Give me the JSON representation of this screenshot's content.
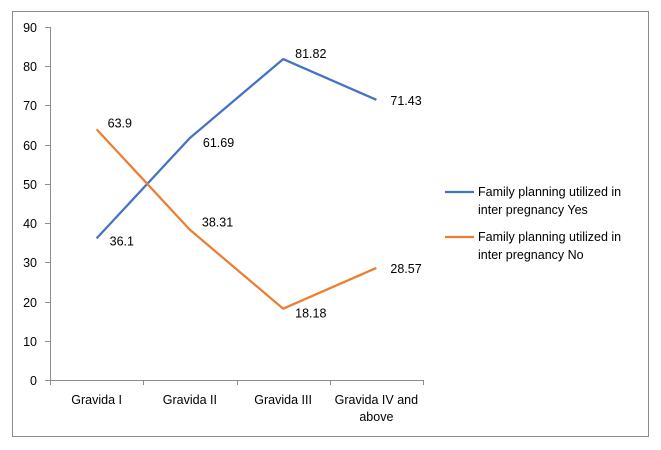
{
  "chart_data": {
    "type": "line",
    "title": "",
    "xlabel": "",
    "ylabel": "",
    "ylim": [
      0,
      90
    ],
    "yticks": [
      0,
      10,
      20,
      30,
      40,
      50,
      60,
      70,
      80,
      90
    ],
    "grid": false,
    "legend_position": "right",
    "categories": [
      [
        "Gravida I"
      ],
      [
        "Gravida II"
      ],
      [
        "Gravida III"
      ],
      [
        "Gravida IV and",
        "above"
      ]
    ],
    "series": [
      {
        "name": "Family planning utilized in inter pregnancy Yes",
        "legend_lines": [
          "Family planning utilized in",
          "inter pregnancy Yes"
        ],
        "color": "#4472C4",
        "values": [
          36.1,
          61.69,
          81.82,
          71.43
        ],
        "labels": [
          "36.1",
          "61.69",
          "81.82",
          "71.43"
        ]
      },
      {
        "name": "Family planning utilized in inter pregnancy No",
        "legend_lines": [
          "Family planning utilized in",
          "inter pregnancy No"
        ],
        "color": "#ED7D31",
        "values": [
          63.9,
          38.31,
          18.18,
          28.57
        ],
        "labels": [
          "63.9",
          "38.31",
          "18.18",
          "28.57"
        ]
      }
    ]
  }
}
